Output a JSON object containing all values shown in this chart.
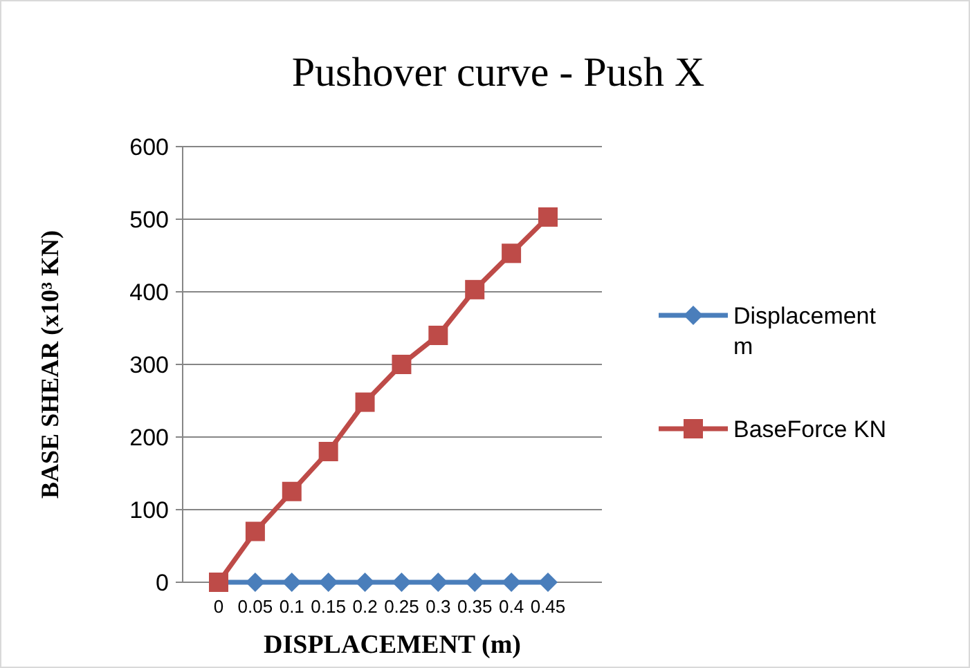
{
  "chart_data": {
    "type": "line",
    "title": "Pushover curve - Push X",
    "xlabel": "DISPLACEMENT (m)",
    "ylabel": "BASE SHEAR (x10³ KN)",
    "categories": [
      "0",
      "0.05",
      "0.1",
      "0.15",
      "0.2",
      "0.25",
      "0.3",
      "0.35",
      "0.4",
      "0.45"
    ],
    "series": [
      {
        "name": "Displacement m",
        "color": "#4a7ebb",
        "marker": "diamond",
        "values": [
          0,
          0,
          0,
          0,
          0,
          0,
          0,
          0,
          0,
          0
        ]
      },
      {
        "name": "BaseForce KN",
        "color": "#be4b48",
        "marker": "square",
        "values": [
          0,
          70,
          125,
          180,
          248,
          300,
          340,
          403,
          453,
          503
        ]
      }
    ],
    "ylim": [
      0,
      600
    ],
    "yticks": [
      0,
      100,
      200,
      300,
      400,
      500,
      600
    ],
    "grid": "y",
    "legend": "right"
  }
}
